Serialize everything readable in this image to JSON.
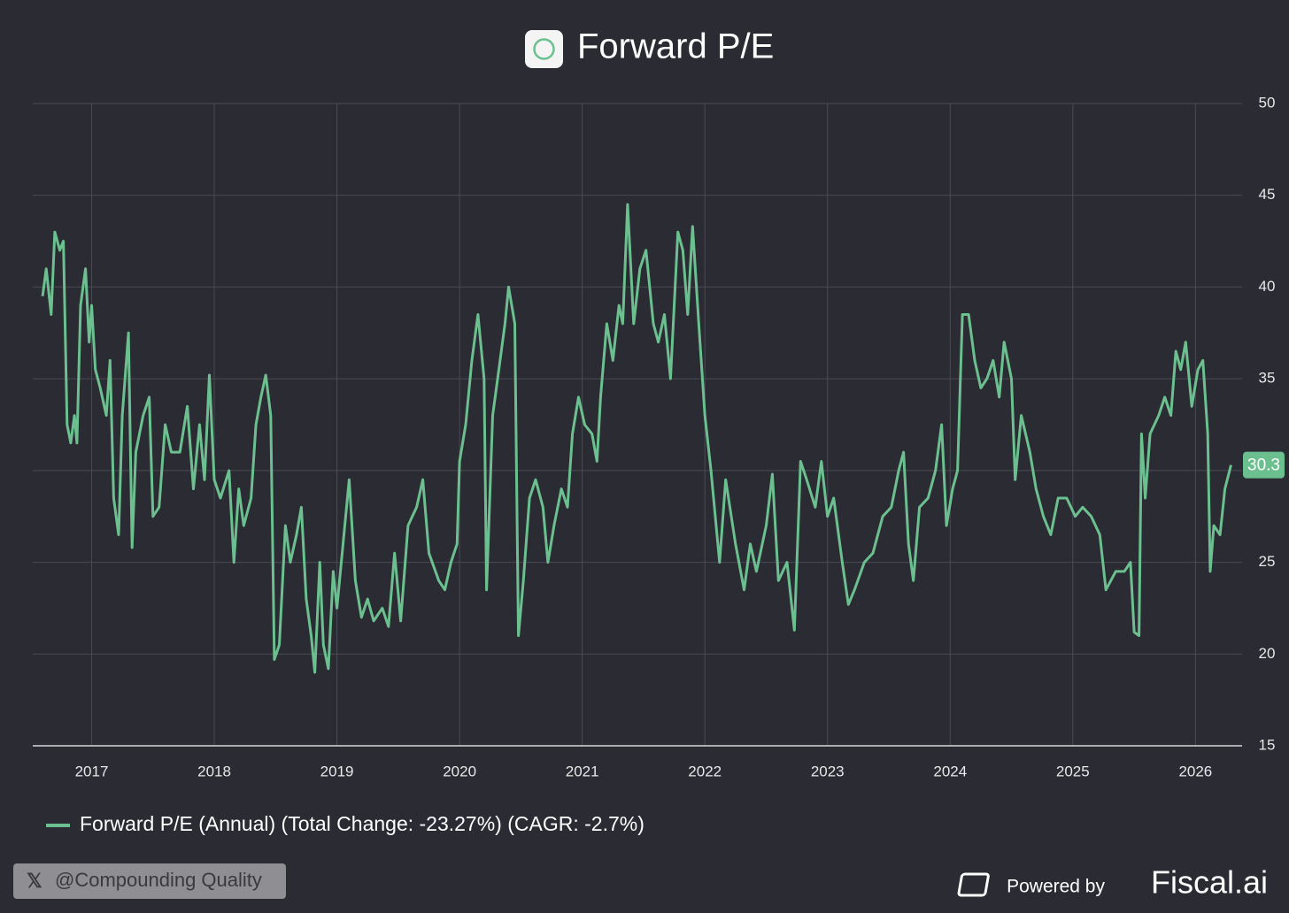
{
  "chart_data": {
    "type": "line",
    "title": "Forward P/E",
    "x": [
      2016.6,
      2016.63,
      2016.67,
      2016.7,
      2016.74,
      2016.77,
      2016.8,
      2016.83,
      2016.86,
      2016.88,
      2016.91,
      2016.95,
      2016.98,
      2017.0,
      2017.03,
      2017.07,
      2017.12,
      2017.15,
      2017.18,
      2017.22,
      2017.25,
      2017.3,
      2017.33,
      2017.36,
      2017.42,
      2017.47,
      2017.5,
      2017.55,
      2017.6,
      2017.65,
      2017.72,
      2017.78,
      2017.83,
      2017.88,
      2017.92,
      2017.96,
      2018.0,
      2018.05,
      2018.12,
      2018.16,
      2018.2,
      2018.24,
      2018.3,
      2018.34,
      2018.38,
      2018.42,
      2018.46,
      2018.49,
      2018.53,
      2018.58,
      2018.62,
      2018.67,
      2018.71,
      2018.75,
      2018.79,
      2018.82,
      2018.86,
      2018.89,
      2018.93,
      2018.97,
      2019.0,
      2019.05,
      2019.1,
      2019.15,
      2019.2,
      2019.25,
      2019.3,
      2019.37,
      2019.42,
      2019.47,
      2019.52,
      2019.58,
      2019.65,
      2019.7,
      2019.75,
      2019.83,
      2019.88,
      2019.93,
      2019.98,
      2020.0,
      2020.05,
      2020.1,
      2020.15,
      2020.2,
      2020.22,
      2020.27,
      2020.3,
      2020.37,
      2020.4,
      2020.45,
      2020.48,
      2020.52,
      2020.57,
      2020.62,
      2020.68,
      2020.72,
      2020.77,
      2020.83,
      2020.88,
      2020.92,
      2020.97,
      2021.02,
      2021.08,
      2021.12,
      2021.15,
      2021.2,
      2021.25,
      2021.3,
      2021.33,
      2021.37,
      2021.42,
      2021.47,
      2021.52,
      2021.58,
      2021.62,
      2021.67,
      2021.72,
      2021.78,
      2021.82,
      2021.86,
      2021.9,
      2021.95,
      2022.0,
      2022.05,
      2022.12,
      2022.17,
      2022.25,
      2022.32,
      2022.37,
      2022.42,
      2022.5,
      2022.55,
      2022.6,
      2022.67,
      2022.73,
      2022.78,
      2022.83,
      2022.9,
      2022.95,
      2023.0,
      2023.05,
      2023.12,
      2023.17,
      2023.22,
      2023.3,
      2023.37,
      2023.45,
      2023.52,
      2023.58,
      2023.62,
      2023.66,
      2023.7,
      2023.75,
      2023.82,
      2023.88,
      2023.93,
      2023.97,
      2024.02,
      2024.06,
      2024.1,
      2024.15,
      2024.2,
      2024.25,
      2024.3,
      2024.35,
      2024.4,
      2024.44,
      2024.5,
      2024.53,
      2024.58,
      2024.65,
      2024.7,
      2024.76,
      2024.82,
      2024.88,
      2024.95,
      2025.02,
      2025.08,
      2025.15,
      2025.22,
      2025.27,
      2025.35,
      2025.42,
      2025.47,
      2025.5,
      2025.54,
      2025.56,
      2025.59,
      2025.63,
      2025.7,
      2025.75,
      2025.8,
      2025.84,
      2025.88,
      2025.92,
      2025.97,
      2026.02,
      2026.06,
      2026.1,
      2026.12,
      2026.15,
      2026.2,
      2026.24,
      2026.29
    ],
    "series": [
      {
        "name": "Forward P/E (Annual) (Total Change: -23.27%) (CAGR: -2.7%)",
        "color": "#6cc08f",
        "values": [
          39.5,
          41,
          38.5,
          43,
          42,
          42.5,
          32.5,
          31.5,
          33,
          31.5,
          39,
          41,
          37,
          39,
          35.5,
          34.5,
          33,
          36,
          28.5,
          26.5,
          33,
          37.5,
          25.8,
          31,
          33,
          34,
          27.5,
          28,
          32.5,
          31,
          31,
          33.5,
          29,
          32.5,
          29.5,
          35.2,
          29.5,
          28.5,
          30,
          25,
          29,
          27,
          28.5,
          32.5,
          34,
          35.2,
          33,
          19.7,
          20.5,
          27,
          25,
          26.5,
          28,
          23,
          21,
          19,
          25,
          20.5,
          19.2,
          24.5,
          22.5,
          26,
          29.5,
          24,
          22,
          23,
          21.8,
          22.5,
          21.5,
          25.5,
          21.8,
          27,
          28,
          29.5,
          25.5,
          24,
          23.5,
          25,
          26,
          30.5,
          32.5,
          36,
          38.5,
          35,
          23.5,
          33,
          34.5,
          38,
          40,
          38,
          21,
          24,
          28.5,
          29.5,
          28,
          25,
          27,
          29,
          28,
          32,
          34,
          32.5,
          32,
          30.5,
          34,
          38,
          36,
          39,
          38,
          44.5,
          38,
          41,
          42,
          38,
          37,
          38.5,
          35,
          43,
          42,
          38.5,
          43.3,
          38,
          33,
          30,
          25,
          29.5,
          26,
          23.5,
          26,
          24.5,
          27,
          29.8,
          24,
          25,
          21.3,
          30.5,
          29.5,
          28,
          30.5,
          27.5,
          28.5,
          25,
          22.7,
          23.5,
          25,
          25.5,
          27.5,
          28,
          30,
          31,
          26,
          24,
          28,
          28.5,
          30,
          32.5,
          27,
          29,
          30,
          38.5,
          38.5,
          36,
          34.5,
          35,
          36,
          34,
          37,
          35,
          29.5,
          33,
          31,
          29,
          27.5,
          26.5,
          28.5,
          28.5,
          27.5,
          28,
          27.5,
          26.5,
          23.5,
          24.5,
          24.5,
          25,
          21.2,
          21,
          32,
          28.5,
          32,
          33,
          34,
          33,
          36.5,
          35.5,
          37,
          33.5,
          35.5,
          36,
          32,
          24.5,
          27,
          26.5,
          29,
          30.3
        ]
      }
    ],
    "xlim": [
      2016.52,
      2026.38
    ],
    "ylim": [
      15,
      50
    ],
    "xticks": [
      2017,
      2018,
      2019,
      2020,
      2021,
      2022,
      2023,
      2024,
      2025,
      2026
    ],
    "yticks": [
      15,
      20,
      25,
      30,
      35,
      40,
      45,
      50
    ],
    "grid": true
  },
  "watermark": "@Compounding Quality",
  "footer": {
    "powered_by": "Powered by",
    "brand": "Fiscal.ai"
  }
}
